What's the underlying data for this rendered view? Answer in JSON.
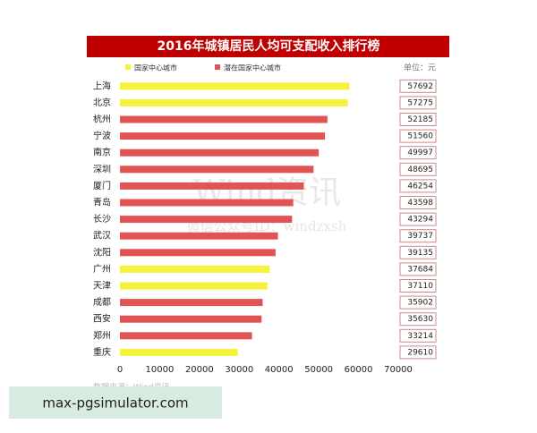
{
  "chart_data": {
    "type": "hbar",
    "title": "2016年城镇居民人均可支配收入排行榜",
    "unit": "单位：元",
    "source": "数据来源：Wind资讯",
    "categories": [
      "上海",
      "北京",
      "杭州",
      "宁波",
      "南京",
      "深圳",
      "厦门",
      "青岛",
      "长沙",
      "武汉",
      "沈阳",
      "广州",
      "天津",
      "成都",
      "西安",
      "郑州",
      "重庆"
    ],
    "series": [
      {
        "name": "国家中心城市",
        "color": "#f4f23a",
        "values": [
          57692,
          57275,
          null,
          null,
          null,
          null,
          null,
          null,
          null,
          null,
          null,
          37684,
          37110,
          null,
          null,
          null,
          29610
        ]
      },
      {
        "name": "潜在国家中心城市",
        "color": "#e25454",
        "values": [
          null,
          null,
          52185,
          51560,
          49997,
          48695,
          46254,
          43598,
          43294,
          39737,
          39135,
          null,
          null,
          35902,
          35630,
          33214,
          null
        ]
      }
    ],
    "xlim": [
      0,
      70000
    ],
    "xticks": [
      0,
      10000,
      20000,
      30000,
      40000,
      50000,
      60000,
      70000
    ],
    "grid": false
  },
  "watermark": [
    "Wind资讯",
    "微信公众号ID：windzxsh"
  ],
  "overlay": "max-pgsimulator.com"
}
